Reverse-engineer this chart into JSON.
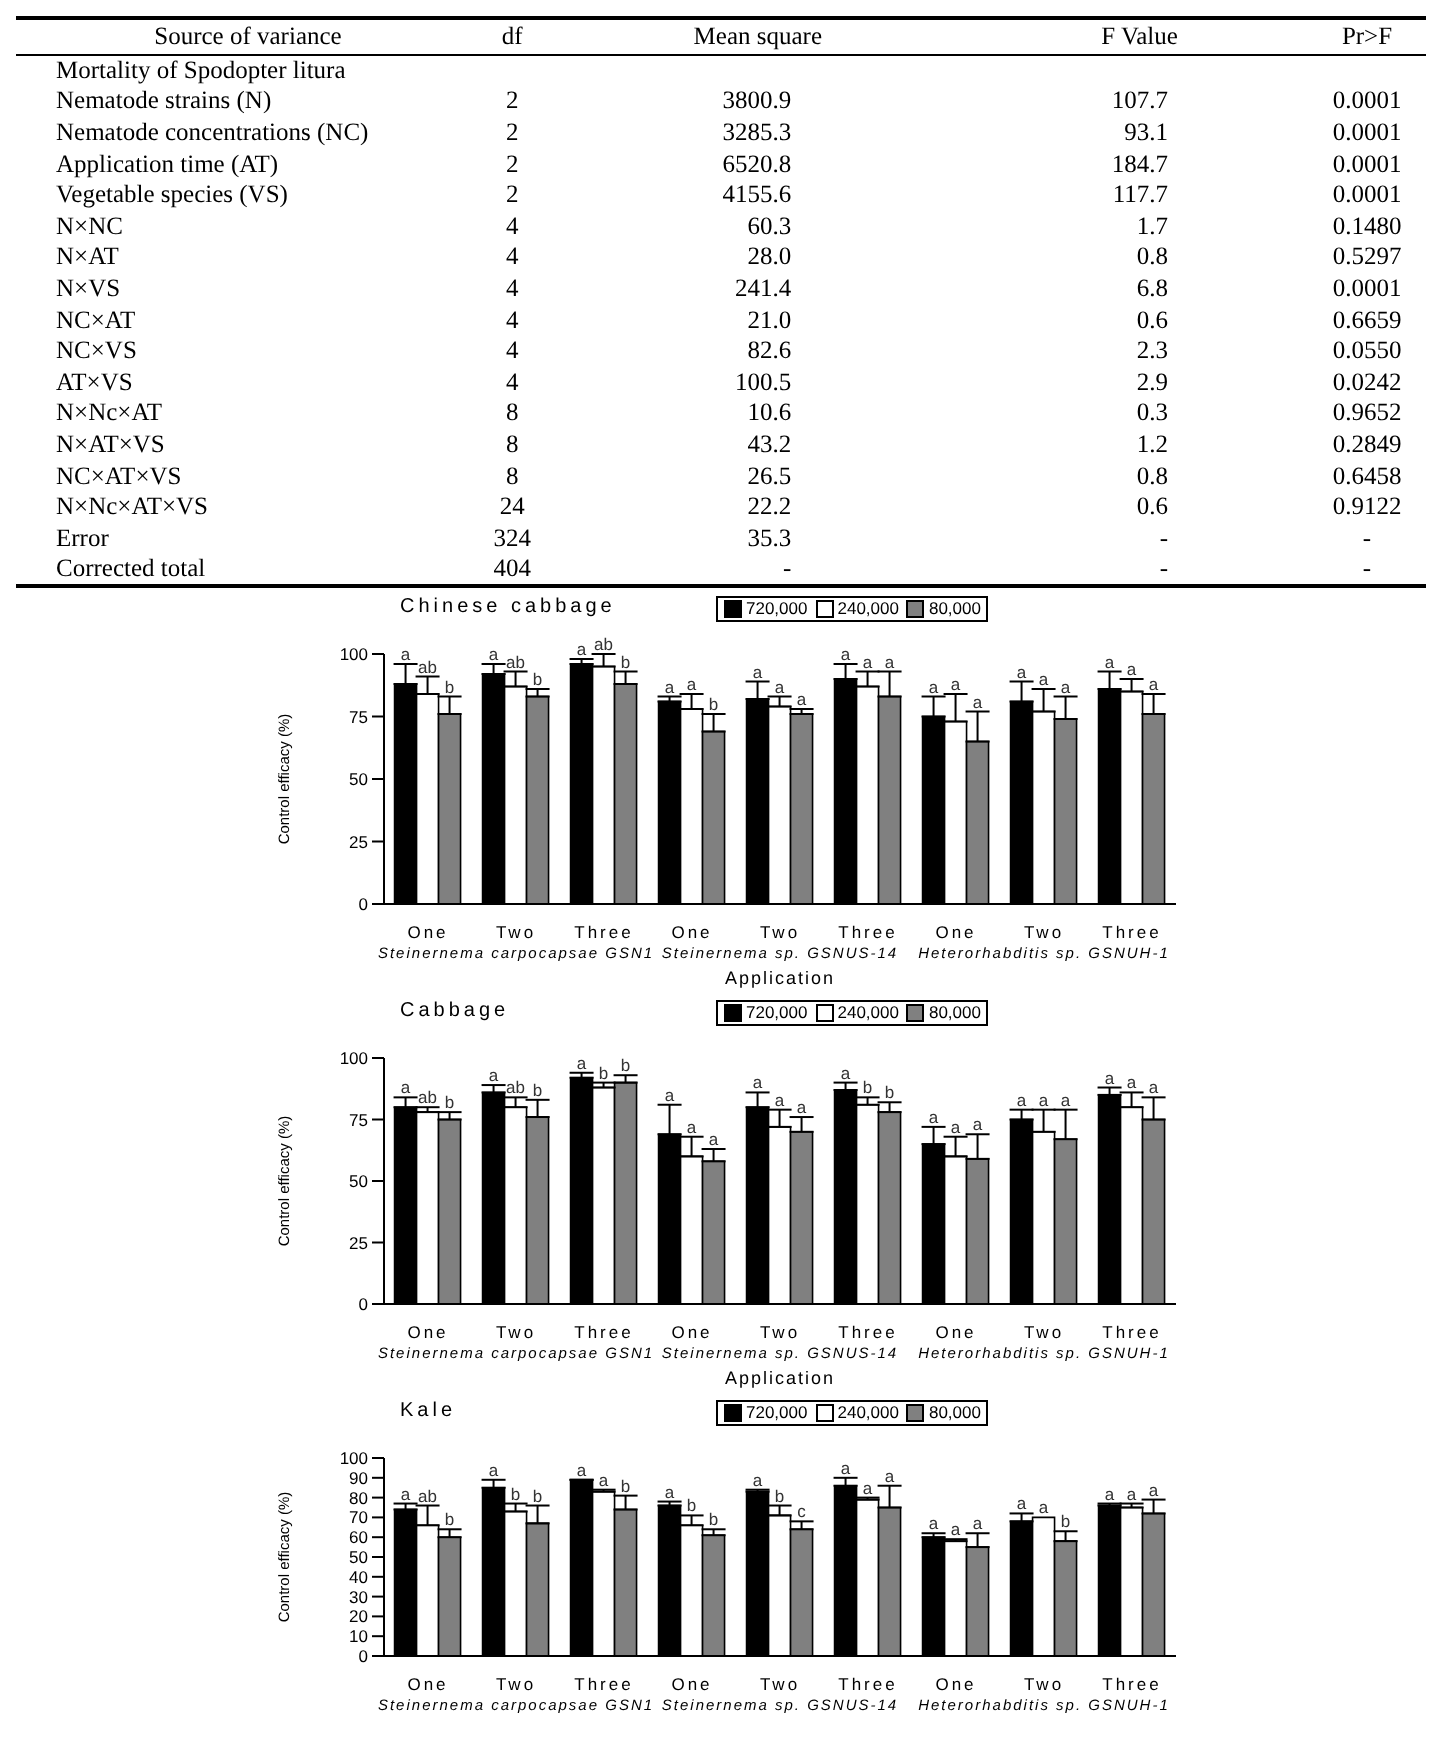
{
  "chart_data": [
    {
      "type": "other",
      "ylabel": "Source of variance",
      "categories": [
        "Mortality of Spodopter litura",
        "Nematode strains (N)",
        "Nematode concentrations (NC)",
        "Application time (AT)",
        "Vegetable species (VS)",
        "N×NC",
        "N×AT",
        "N×VS",
        "NC×AT",
        "NC×VS",
        "AT×VS",
        "N×Nc×AT",
        "N×AT×VS",
        "NC×AT×VS",
        "N×Nc×AT×VS",
        "Error",
        "Corrected total"
      ],
      "series": [
        {
          "name": "df",
          "values": [
            null,
            2,
            2,
            2,
            2,
            4,
            4,
            4,
            4,
            4,
            4,
            8,
            8,
            8,
            24,
            324,
            404
          ],
          "value_labels": [
            null,
            "2",
            "2",
            "2",
            "2",
            "4",
            "4",
            "4",
            "4",
            "4",
            "4",
            "8",
            "8",
            "8",
            "24",
            "324",
            "404"
          ]
        },
        {
          "name": "Mean square",
          "values": [
            null,
            3800.9,
            3285.3,
            6520.8,
            4155.6,
            60.3,
            28.0,
            241.4,
            21.0,
            82.6,
            100.5,
            10.6,
            43.2,
            26.5,
            22.2,
            35.3,
            null
          ],
          "value_labels": [
            null,
            "3800.9",
            "3285.3",
            "6520.8",
            "4155.6",
            "60.3",
            "28.0",
            "241.4",
            "21.0",
            "82.6",
            "100.5",
            "10.6",
            "43.2",
            "26.5",
            "22.2",
            "35.3",
            "-"
          ]
        },
        {
          "name": "F Value",
          "values": [
            null,
            107.7,
            93.1,
            184.7,
            117.7,
            1.7,
            0.8,
            6.8,
            0.6,
            2.3,
            2.9,
            0.3,
            1.2,
            0.8,
            0.6,
            null,
            null
          ],
          "value_labels": [
            null,
            "107.7",
            "93.1",
            "184.7",
            "117.7",
            "1.7",
            "0.8",
            "6.8",
            "0.6",
            "2.3",
            "2.9",
            "0.3",
            "1.2",
            "0.8",
            "0.6",
            "-",
            "-"
          ]
        },
        {
          "name": "Pr>F",
          "values": [
            null,
            0.0001,
            0.0001,
            0.0001,
            0.0001,
            0.148,
            0.5297,
            0.0001,
            0.6659,
            0.055,
            0.0242,
            0.9652,
            0.2849,
            0.6458,
            0.9122,
            null,
            null
          ],
          "value_labels": [
            null,
            "0.0001",
            "0.0001",
            "0.0001",
            "0.0001",
            "0.1480",
            "0.5297",
            "0.0001",
            "0.6659",
            "0.0550",
            "0.0242",
            "0.9652",
            "0.2849",
            "0.6458",
            "0.9122",
            "-",
            "-"
          ]
        }
      ]
    },
    {
      "type": "bar",
      "title": "Chinese cabbage",
      "xlabel": "Application",
      "ylabel": "Control efficacy (%)",
      "categories": [
        "One",
        "Two",
        "Three",
        "One",
        "Two",
        "Three",
        "One",
        "Two",
        "Three"
      ],
      "annotations": [
        "Steinernema carpocapsae GSN1",
        "Steinernema sp. GSNUS-14",
        "Heterorhabditis sp. GSNUH-1"
      ],
      "ylim": [
        0,
        100
      ],
      "yticks": [
        0,
        25,
        50,
        75,
        100
      ],
      "legend": "top",
      "series": [
        {
          "name": "720,000",
          "color": "#000000",
          "values": [
            88,
            92,
            96,
            81,
            82,
            90,
            75,
            81,
            86
          ],
          "errors": [
            [
              88,
              96
            ],
            [
              92,
              96
            ],
            [
              96,
              98
            ],
            [
              81,
              83
            ],
            [
              82,
              89
            ],
            [
              90,
              96
            ],
            [
              75,
              83
            ],
            [
              81,
              89
            ],
            [
              86,
              93
            ]
          ],
          "value_labels": [
            "a",
            "a",
            "a",
            "a",
            "a",
            "a",
            "a",
            "a",
            "a"
          ]
        },
        {
          "name": "240,000",
          "color": "#ffffff",
          "values": [
            84,
            87,
            95,
            78,
            79,
            87,
            73,
            77,
            85
          ],
          "errors": [
            [
              84,
              91
            ],
            [
              87,
              93
            ],
            [
              95,
              100
            ],
            [
              78,
              84
            ],
            [
              79,
              83
            ],
            [
              87,
              93
            ],
            [
              73,
              84
            ],
            [
              77,
              86
            ],
            [
              85,
              90
            ]
          ],
          "value_labels": [
            "ab",
            "ab",
            "ab",
            "a",
            "a",
            "a",
            "a",
            "a",
            "a"
          ]
        },
        {
          "name": "80,000",
          "color": "#808080",
          "values": [
            76,
            83,
            88,
            69,
            76,
            83,
            65,
            74,
            76
          ],
          "errors": [
            [
              76,
              83
            ],
            [
              83,
              86
            ],
            [
              88,
              93
            ],
            [
              69,
              76
            ],
            [
              76,
              78
            ],
            [
              83,
              93
            ],
            [
              65,
              77
            ],
            [
              74,
              83
            ],
            [
              76,
              84
            ]
          ],
          "value_labels": [
            "b",
            "b",
            "b",
            "b",
            "a",
            "a",
            "a",
            "a",
            "a"
          ]
        }
      ]
    },
    {
      "type": "bar",
      "title": "Cabbage",
      "xlabel": "Application",
      "ylabel": "Control efficacy (%)",
      "categories": [
        "One",
        "Two",
        "Three",
        "One",
        "Two",
        "Three",
        "One",
        "Two",
        "Three"
      ],
      "annotations": [
        "Steinernema carpocapsae GSN1",
        "Steinernema sp. GSNUS-14",
        "Heterorhabditis sp. GSNUH-1"
      ],
      "ylim": [
        0,
        100
      ],
      "yticks": [
        0,
        25,
        50,
        75,
        100
      ],
      "legend": "top",
      "series": [
        {
          "name": "720,000",
          "color": "#000000",
          "values": [
            80,
            86,
            92,
            69,
            80,
            87,
            65,
            75,
            85
          ],
          "errors": [
            [
              80,
              84
            ],
            [
              86,
              89
            ],
            [
              92,
              94
            ],
            [
              69,
              81
            ],
            [
              80,
              86
            ],
            [
              87,
              90
            ],
            [
              65,
              72
            ],
            [
              75,
              79
            ],
            [
              85,
              88
            ]
          ],
          "value_labels": [
            "a",
            "a",
            "a",
            "a",
            "a",
            "a",
            "a",
            "a",
            "a"
          ]
        },
        {
          "name": "240,000",
          "color": "#ffffff",
          "values": [
            78,
            80,
            88,
            60,
            72,
            81,
            60,
            70,
            80
          ],
          "errors": [
            [
              78,
              80
            ],
            [
              80,
              84
            ],
            [
              88,
              90
            ],
            [
              60,
              68
            ],
            [
              72,
              79
            ],
            [
              81,
              84
            ],
            [
              60,
              68
            ],
            [
              70,
              79
            ],
            [
              80,
              86
            ]
          ],
          "value_labels": [
            "ab",
            "ab",
            "b",
            "a",
            "a",
            "b",
            "a",
            "a",
            "a"
          ]
        },
        {
          "name": "80,000",
          "color": "#808080",
          "values": [
            75,
            76,
            90,
            58,
            70,
            78,
            59,
            67,
            75
          ],
          "errors": [
            [
              75,
              78
            ],
            [
              76,
              83
            ],
            [
              90,
              93
            ],
            [
              58,
              63
            ],
            [
              70,
              76
            ],
            [
              78,
              82
            ],
            [
              59,
              69
            ],
            [
              67,
              79
            ],
            [
              75,
              84
            ]
          ],
          "value_labels": [
            "b",
            "b",
            "b",
            "a",
            "a",
            "b",
            "a",
            "a",
            "a"
          ]
        }
      ]
    },
    {
      "type": "bar",
      "title": "Kale",
      "ylabel": "Control efficacy (%)",
      "categories": [
        "One",
        "Two",
        "Three",
        "One",
        "Two",
        "Three",
        "One",
        "Two",
        "Three"
      ],
      "annotations": [
        "Steinernema carpocapsae GSN1",
        "Steinernema sp. GSNUS-14",
        "Heterorhabditis sp. GSNUH-1"
      ],
      "ylim": [
        0,
        100
      ],
      "yticks": [
        0,
        10,
        20,
        30,
        40,
        50,
        60,
        70,
        80,
        90,
        100
      ],
      "legend": "top",
      "series": [
        {
          "name": "720,000",
          "color": "#000000",
          "values": [
            74,
            85,
            89,
            76,
            83,
            86,
            60,
            68,
            76
          ],
          "errors": [
            [
              74,
              77
            ],
            [
              85,
              89
            ],
            [
              89,
              89
            ],
            [
              76,
              78
            ],
            [
              83,
              84
            ],
            [
              86,
              90
            ],
            [
              60,
              62
            ],
            [
              68,
              72
            ],
            [
              76,
              77
            ]
          ],
          "value_labels": [
            "a",
            "a",
            "a",
            "a",
            "a",
            "a",
            "a",
            "a",
            "a"
          ]
        },
        {
          "name": "240,000",
          "color": "#ffffff",
          "values": [
            66,
            73,
            83,
            66,
            71,
            79,
            58,
            70,
            75
          ],
          "errors": [
            [
              66,
              76
            ],
            [
              73,
              77
            ],
            [
              83,
              84
            ],
            [
              66,
              71
            ],
            [
              71,
              76
            ],
            [
              79,
              80
            ],
            [
              58,
              59
            ],
            null,
            [
              75,
              77
            ]
          ],
          "value_labels": [
            "ab",
            "b",
            "a",
            "b",
            "b",
            "a",
            "a",
            "a",
            "a"
          ]
        },
        {
          "name": "80,000",
          "color": "#808080",
          "values": [
            60,
            67,
            74,
            61,
            64,
            75,
            55,
            58,
            72
          ],
          "errors": [
            [
              60,
              64
            ],
            [
              67,
              76
            ],
            [
              74,
              81
            ],
            [
              61,
              64
            ],
            [
              64,
              68
            ],
            [
              75,
              86
            ],
            [
              55,
              62
            ],
            [
              58,
              63
            ],
            [
              72,
              79
            ]
          ],
          "value_labels": [
            "b",
            "b",
            "b",
            "b",
            "c",
            "a",
            "a",
            "b",
            "a"
          ]
        }
      ]
    }
  ]
}
